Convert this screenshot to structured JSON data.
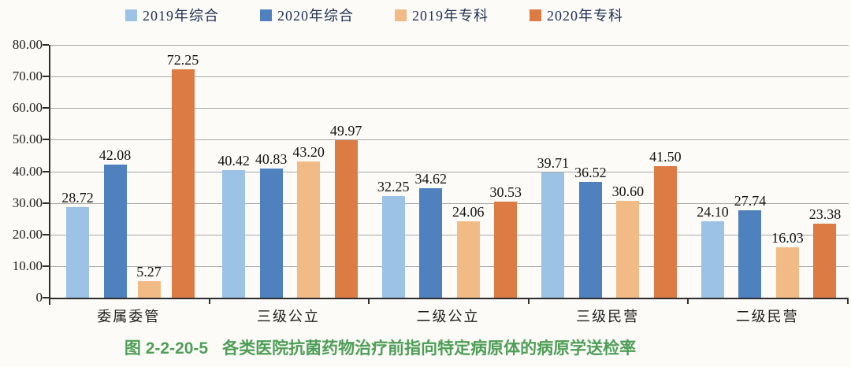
{
  "chart_data": {
    "type": "bar",
    "figure_number": "图 2-2-20-5",
    "title": "各类医院抗菌药物治疗前指向特定病原体的病原学送检率",
    "categories": [
      "委属委管",
      "三级公立",
      "二级公立",
      "三级民营",
      "二级民营"
    ],
    "series": [
      {
        "name": "2019年综合",
        "color": "#9CC2E5",
        "values": [
          28.72,
          40.42,
          32.25,
          39.71,
          24.1
        ]
      },
      {
        "name": "2020年综合",
        "color": "#4E81BD",
        "values": [
          42.08,
          40.83,
          34.62,
          36.52,
          27.74
        ]
      },
      {
        "name": "2019年专科",
        "color": "#F2BB85",
        "values": [
          5.27,
          43.2,
          24.06,
          30.6,
          16.03
        ]
      },
      {
        "name": "2020年专科",
        "color": "#DD7B45",
        "values": [
          72.25,
          49.97,
          30.53,
          41.5,
          23.38
        ]
      }
    ],
    "ylim": [
      0,
      80
    ],
    "ytick_step": 10,
    "ytick_labels": [
      "0",
      "10.00",
      "20.00",
      "30.00",
      "40.00",
      "50.00",
      "60.00",
      "70.00",
      "80.00"
    ],
    "value_label_decimals": 2,
    "grid": true,
    "legend_position": "top",
    "colors": {
      "axis": "#2e2e2e",
      "gridline": "#a9a9a9",
      "legend_text": "#1e2f52",
      "caption_green": "#4e9e57",
      "background": "#fcfbf8"
    }
  }
}
